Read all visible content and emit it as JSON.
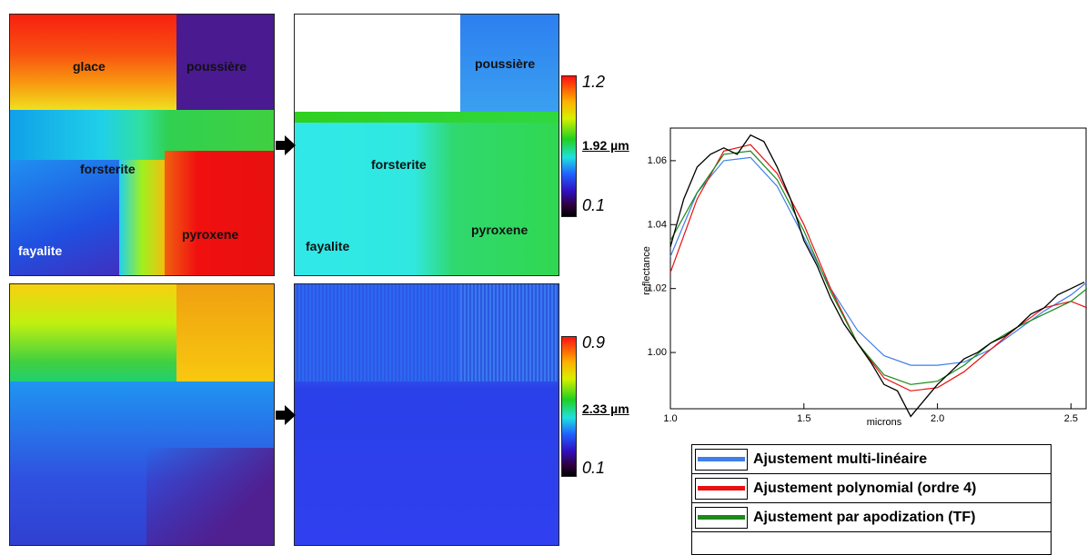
{
  "maps": {
    "top_left": [
      "glace",
      "poussière",
      "forsterite",
      "pyroxene",
      "fayalite"
    ],
    "top_middle": [
      "poussière",
      "forsterite",
      "fayalite",
      "pyroxene"
    ]
  },
  "colorbars": [
    {
      "max": 1.2,
      "label": "1.92 µm",
      "min": 0.1
    },
    {
      "max": 0.9,
      "label": "2.33 µm",
      "min": 0.1
    }
  ],
  "chart_data": {
    "type": "line",
    "xlabel": "microns",
    "ylabel": "reflectance",
    "xlim": [
      1.0,
      2.56
    ],
    "ylim": [
      0.9824,
      1.0702
    ],
    "xticks": [
      {
        "value": 1,
        "label": "1.0"
      },
      1.5,
      {
        "value": 2,
        "label": "2.0"
      },
      2.5
    ],
    "yticks": [
      {
        "value": 1,
        "label": "1.00"
      },
      1.02,
      1.04,
      1.06
    ],
    "series": [
      {
        "color": "#000000",
        "x": [
          1.0,
          1.05,
          1.1,
          1.15,
          1.2,
          1.25,
          1.3,
          1.35,
          1.4,
          1.45,
          1.5,
          1.55,
          1.6,
          1.65,
          1.7,
          1.75,
          1.8,
          1.85,
          1.9,
          1.95,
          2.0,
          2.05,
          2.1,
          2.15,
          2.2,
          2.25,
          2.3,
          2.35,
          2.4,
          2.45,
          2.5,
          2.55
        ],
        "values": [
          1.033,
          1.048,
          1.058,
          1.062,
          1.064,
          1.062,
          1.068,
          1.066,
          1.058,
          1.048,
          1.035,
          1.027,
          1.017,
          1.009,
          1.003,
          0.997,
          0.99,
          0.988,
          0.98,
          0.985,
          0.99,
          0.994,
          0.998,
          1.0,
          1.003,
          1.005,
          1.008,
          1.012,
          1.014,
          1.018,
          1.02,
          1.022
        ]
      },
      {
        "name": "Ajustement multi-linéaire",
        "color": "#3f7fe8",
        "x": [
          1.0,
          1.1,
          1.2,
          1.3,
          1.4,
          1.5,
          1.6,
          1.7,
          1.8,
          1.9,
          2.0,
          2.1,
          2.2,
          2.3,
          2.4,
          2.5,
          2.56
        ],
        "values": [
          1.03,
          1.05,
          1.06,
          1.061,
          1.052,
          1.036,
          1.02,
          1.007,
          0.999,
          0.996,
          0.996,
          0.997,
          1.001,
          1.007,
          1.013,
          1.018,
          1.022
        ]
      },
      {
        "name": "Ajustement polynomial (ordre 4)",
        "color": "#e81010",
        "x": [
          1.0,
          1.1,
          1.2,
          1.3,
          1.4,
          1.5,
          1.6,
          1.7,
          1.8,
          1.9,
          2.0,
          2.1,
          2.2,
          2.3,
          2.4,
          2.5,
          2.56
        ],
        "values": [
          1.025,
          1.048,
          1.063,
          1.065,
          1.056,
          1.04,
          1.02,
          1.003,
          0.992,
          0.988,
          0.989,
          0.994,
          1.001,
          1.008,
          1.014,
          1.016,
          1.014
        ]
      },
      {
        "name": "Ajustement par apodization (TF)",
        "color": "#1a8a1a",
        "x": [
          1.0,
          1.1,
          1.2,
          1.3,
          1.4,
          1.5,
          1.6,
          1.7,
          1.8,
          1.9,
          2.0,
          2.1,
          2.2,
          2.3,
          2.4,
          2.5,
          2.56
        ],
        "values": [
          1.035,
          1.05,
          1.062,
          1.063,
          1.054,
          1.038,
          1.019,
          1.003,
          0.993,
          0.99,
          0.991,
          0.996,
          1.003,
          1.008,
          1.012,
          1.016,
          1.02
        ]
      }
    ]
  }
}
